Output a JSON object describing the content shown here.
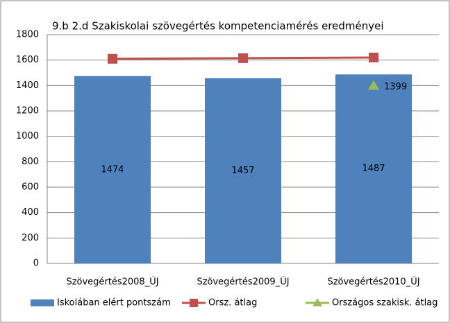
{
  "chart_data": {
    "type": "bar",
    "title": "9.b 2.d Szakiskolai szövegértés kompetenciamérés eredményei",
    "categories": [
      "Szövegértés2008_ÚJ",
      "Szövegértés2009_ÚJ",
      "Szövegértés2010_ÚJ"
    ],
    "series": [
      {
        "name": "Iskolában elért pontszám",
        "type": "bar",
        "color": "#4f81bd",
        "values": [
          1474,
          1457,
          1487
        ]
      },
      {
        "name": "Orsz. átlag",
        "type": "line",
        "color": "#c0504d",
        "values": [
          1610,
          1615,
          1620
        ]
      },
      {
        "name": "Országos szakisk. átlag",
        "type": "scatter",
        "color": "#9bbb59",
        "values": [
          null,
          null,
          1399
        ]
      }
    ],
    "ylim": [
      0,
      1800
    ],
    "yticks": [
      0,
      200,
      400,
      600,
      800,
      1000,
      1200,
      1400,
      1600,
      1800
    ],
    "grid": true,
    "legend": "bottom"
  }
}
